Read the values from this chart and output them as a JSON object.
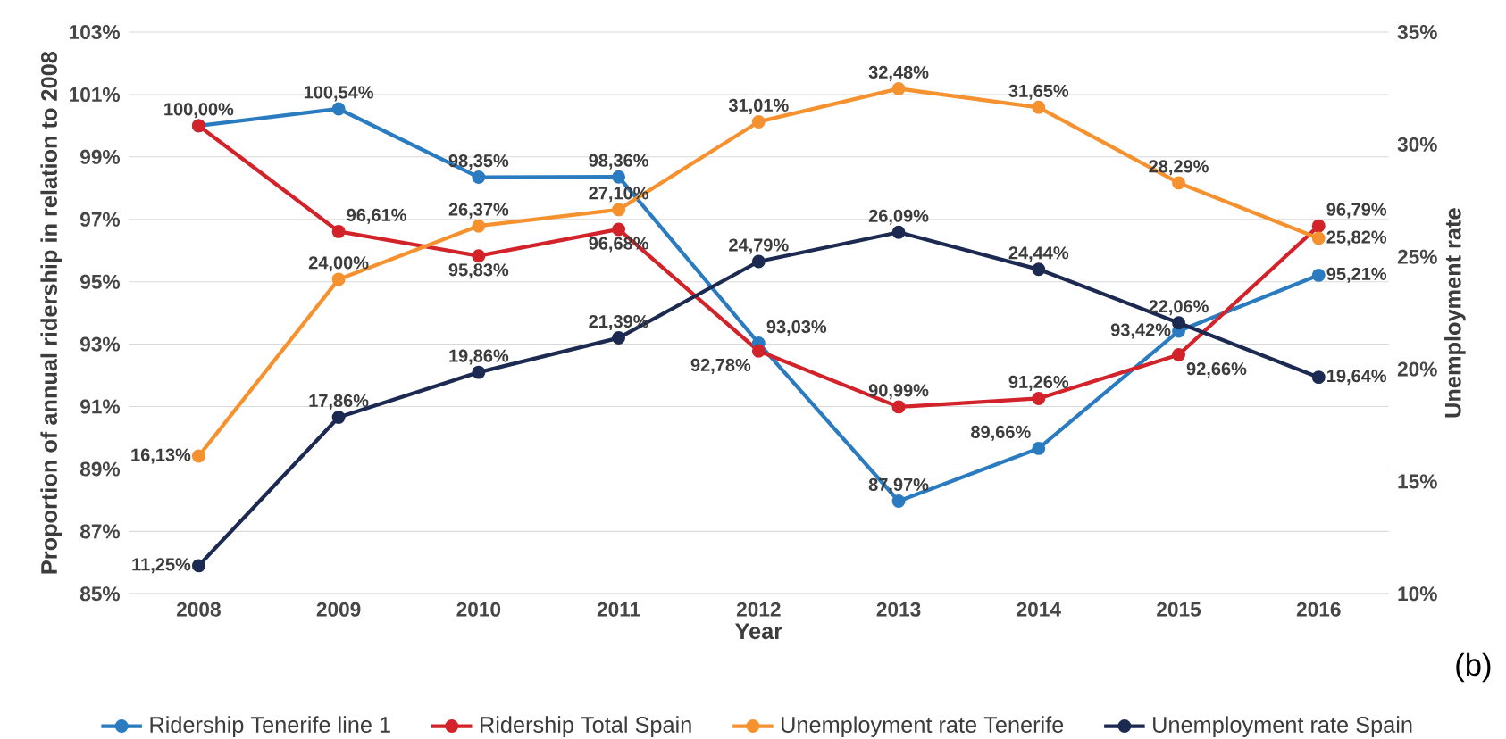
{
  "chart_data": {
    "type": "line",
    "xlabel": "Year",
    "ylabel": "Proportion of annual ridership in relation to 2008",
    "y2label": "Unemployment rate",
    "categories": [
      "2008",
      "2009",
      "2010",
      "2011",
      "2012",
      "2013",
      "2014",
      "2015",
      "2016"
    ],
    "series": [
      {
        "name": "Ridership Tenerife line 1",
        "color": "#2a7bc0",
        "values": [
          100.0,
          100.54,
          98.35,
          98.36,
          93.03,
          87.97,
          89.66,
          93.42,
          95.21
        ],
        "value_labels": [
          "100,00%",
          "100,54%",
          "98,35%",
          "98,36%",
          "93,03%",
          "87,97%",
          "89,66%",
          "93,42%",
          "95,21%"
        ]
      },
      {
        "name": "Ridership Total Spain",
        "color": "#d2232a",
        "values": [
          100.0,
          96.61,
          95.83,
          96.68,
          92.78,
          90.99,
          91.26,
          92.66,
          96.79
        ],
        "value_labels": [
          null,
          "96,61%",
          "95,83%",
          "96,68%",
          "92,78%",
          "90,99%",
          "91,26%",
          "92,66%",
          "96,79%"
        ]
      },
      {
        "name": "Unemployment rate Tenerife",
        "color": "#f5922f",
        "axis": "y2",
        "values": [
          16.13,
          24.0,
          26.37,
          27.1,
          31.01,
          32.48,
          31.65,
          28.29,
          25.82
        ],
        "value_labels": [
          "16,13%",
          "24,00%",
          "26,37%",
          "27,10%",
          "31,01%",
          "32,48%",
          "31,65%",
          "28,29%",
          "25,82%"
        ]
      },
      {
        "name": "Unemployment rate Spain",
        "color": "#1c2a52",
        "axis": "y2",
        "values": [
          11.25,
          17.86,
          19.86,
          21.39,
          24.79,
          26.09,
          24.44,
          22.06,
          19.64
        ],
        "value_labels": [
          "11,25%",
          "17,86%",
          "19,86%",
          "21,39%",
          "24,79%",
          "26,09%",
          "24,44%",
          "22,06%",
          "19,64%"
        ]
      }
    ],
    "ylim": [
      85,
      103
    ],
    "yticks": [
      {
        "value": 85,
        "label": "85%"
      },
      {
        "value": 87,
        "label": "87%"
      },
      {
        "value": 89,
        "label": "89%"
      },
      {
        "value": 91,
        "label": "91%"
      },
      {
        "value": 93,
        "label": "93%"
      },
      {
        "value": 95,
        "label": "95%"
      },
      {
        "value": 97,
        "label": "97%"
      },
      {
        "value": 99,
        "label": "99%"
      },
      {
        "value": 101,
        "label": "101%"
      },
      {
        "value": 103,
        "label": "103%"
      }
    ],
    "y2lim": [
      10,
      35
    ],
    "y2ticks": [
      {
        "value": 10,
        "label": "10%"
      },
      {
        "value": 15,
        "label": "15%"
      },
      {
        "value": 20,
        "label": "20%"
      },
      {
        "value": 25,
        "label": "25%"
      },
      {
        "value": 30,
        "label": "30%"
      },
      {
        "value": 35,
        "label": "35%"
      }
    ],
    "grid": "y",
    "legend": "bottom",
    "marker": "circle",
    "line_style": "solid",
    "annotations": [
      "(b)"
    ]
  }
}
